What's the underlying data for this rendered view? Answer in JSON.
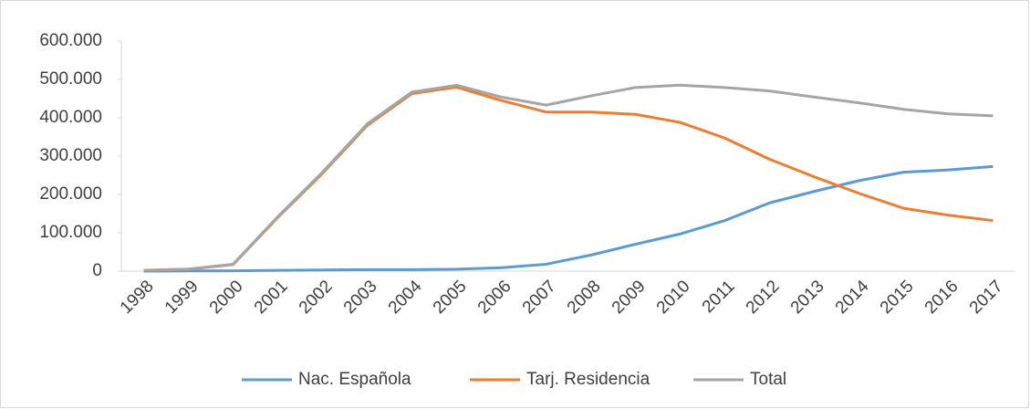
{
  "chart_data": {
    "type": "line",
    "categories": [
      "1998",
      "1999",
      "2000",
      "2001",
      "2002",
      "2003",
      "2004",
      "2005",
      "2006",
      "2007",
      "2008",
      "2009",
      "2010",
      "2011",
      "2012",
      "2013",
      "2014",
      "2015",
      "2016",
      "2017"
    ],
    "series": [
      {
        "name": "Nac. Española",
        "color": "#5b9bd5",
        "values": [
          0,
          500,
          1000,
          2000,
          3000,
          4000,
          4000,
          5000,
          9000,
          18000,
          42000,
          70000,
          97000,
          132000,
          178000,
          208000,
          236000,
          258000,
          264000,
          273000
        ]
      },
      {
        "name": "Tarj. Residencia",
        "color": "#ed7d31",
        "values": [
          2000,
          5000,
          17000,
          140000,
          255000,
          380000,
          463000,
          480000,
          445000,
          415000,
          415000,
          409000,
          388000,
          347000,
          292000,
          246000,
          203000,
          164000,
          146000,
          132000
        ]
      },
      {
        "name": "Total",
        "color": "#a5a5a5",
        "values": [
          2000,
          5500,
          18000,
          142000,
          258000,
          384000,
          467000,
          485000,
          454000,
          433000,
          457000,
          479000,
          485000,
          479000,
          470000,
          454000,
          439000,
          422000,
          410000,
          405000
        ]
      }
    ],
    "ylim": [
      0,
      600000
    ],
    "yticks": [
      0,
      {
        "value": 100000,
        "label": "100.000"
      },
      {
        "value": 200000,
        "label": "200.000"
      },
      {
        "value": 300000,
        "label": "300.000"
      },
      {
        "value": 400000,
        "label": "400.000"
      },
      {
        "value": 500000,
        "label": "500.000"
      },
      {
        "value": 600000,
        "label": "600.000"
      }
    ],
    "legend": "bottom"
  }
}
